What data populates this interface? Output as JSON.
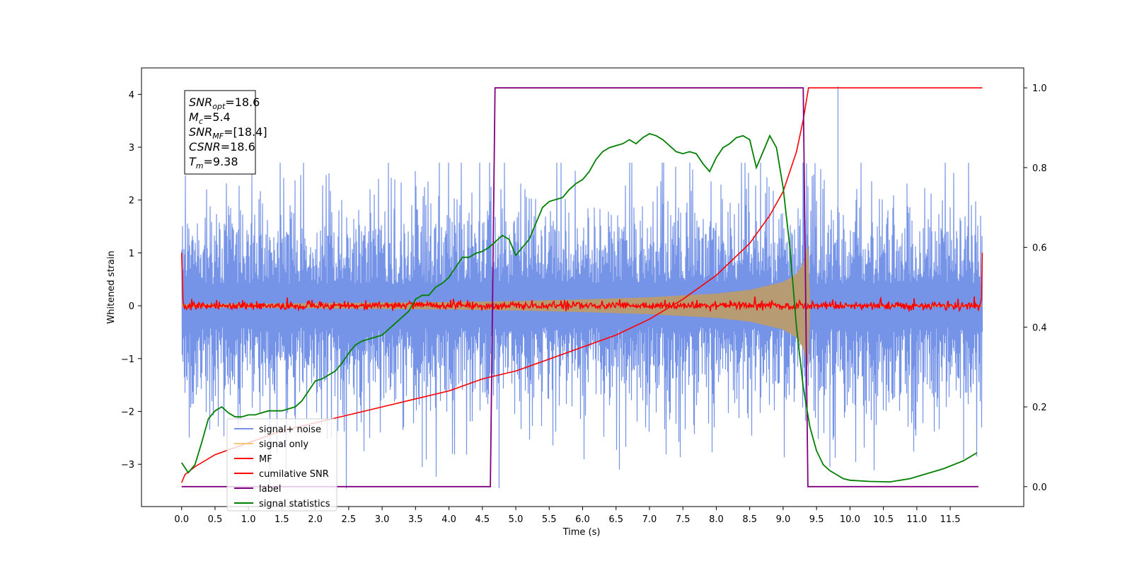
{
  "chart_data": {
    "type": "line",
    "xlabel": "Time (s)",
    "ylabel": "Whitened strain",
    "xlim": [
      -0.6,
      12.6
    ],
    "ylim": [
      -3.8,
      4.5
    ],
    "y2lim": [
      -0.05,
      1.05
    ],
    "x_ticks": [
      0.0,
      0.5,
      1.0,
      1.5,
      2.0,
      2.5,
      3.0,
      3.5,
      4.0,
      4.5,
      5.0,
      5.5,
      6.0,
      6.5,
      7.0,
      7.5,
      8.0,
      8.5,
      9.0,
      9.5,
      10.0,
      10.5,
      11.0,
      11.5
    ],
    "x_tick_labels": [
      "0.0",
      "0.5",
      "1.0",
      "1.5",
      "2.0",
      "2.5",
      "3.0",
      "3.5",
      "4.0",
      "4.5",
      "5.0",
      "5.5",
      "6.0",
      "6.5",
      "7.0",
      "7.5",
      "8.0",
      "8.5",
      "9.0",
      "9.5",
      "10.0",
      "10.5",
      "11.0",
      "11.5"
    ],
    "y_ticks": [
      -3,
      -2,
      -1,
      0,
      1,
      2,
      3,
      4
    ],
    "y_tick_labels": [
      "−3",
      "−2",
      "−1",
      "0",
      "1",
      "2",
      "3",
      "4"
    ],
    "y2_ticks": [
      0.0,
      0.2,
      0.4,
      0.6,
      0.8,
      1.0
    ],
    "y2_tick_labels": [
      "0.0",
      "0.2",
      "0.4",
      "0.6",
      "0.8",
      "1.0"
    ],
    "grid": false,
    "legend_placement": "lower-left",
    "annotation": {
      "lines": [
        {
          "base": "SNR",
          "sub": "opt",
          "rest": "=18.6"
        },
        {
          "base": "M",
          "sub": "c",
          "rest": "=5.4"
        },
        {
          "base": "SNR",
          "sub": "MF",
          "rest": "=[18.4]"
        },
        {
          "base": "CSNR",
          "sub": "",
          "rest": "=18.6"
        },
        {
          "base": "T",
          "sub": "m",
          "rest": "=9.38"
        }
      ]
    },
    "series": [
      {
        "name": "signal+ noise",
        "axis": "left",
        "color": "#7593e7",
        "kind": "noise",
        "t_start": 0.0,
        "t_end": 11.98,
        "band_sigma": 1.0,
        "peak_max": 4.2,
        "peak_min": -3.45
      },
      {
        "name": "signal only",
        "axis": "left",
        "color": "#f5c97a",
        "fill": "#bb9b6d",
        "kind": "chirp",
        "t_start": 0.0,
        "t_end": 11.98,
        "merger_time": 9.38,
        "envelope": {
          "t": [
            0.0,
            2.0,
            4.0,
            5.0,
            6.0,
            7.0,
            8.0,
            8.5,
            9.0,
            9.2,
            9.3,
            9.38,
            9.39,
            11.98
          ],
          "amp": [
            0.03,
            0.05,
            0.07,
            0.09,
            0.12,
            0.16,
            0.23,
            0.3,
            0.45,
            0.6,
            0.8,
            1.2,
            0.02,
            0.02
          ]
        }
      },
      {
        "name": "MF",
        "axis": "left",
        "color": "#ff0000",
        "kind": "mf",
        "t_start": 0.0,
        "t_end": 11.98,
        "amplitude": 0.06,
        "edge_value": 1.0
      },
      {
        "name": "cumilative SNR",
        "axis": "right",
        "color": "#ff0000",
        "x": [
          0.0,
          0.05,
          0.2,
          0.5,
          1.0,
          1.5,
          2.0,
          2.5,
          3.0,
          3.5,
          4.0,
          4.5,
          5.0,
          5.5,
          6.0,
          6.5,
          7.0,
          7.5,
          8.0,
          8.5,
          8.8,
          9.0,
          9.2,
          9.3,
          9.38,
          11.98
        ],
        "y": [
          0.01,
          0.03,
          0.05,
          0.08,
          0.11,
          0.14,
          0.16,
          0.18,
          0.2,
          0.22,
          0.24,
          0.27,
          0.29,
          0.32,
          0.35,
          0.38,
          0.42,
          0.47,
          0.53,
          0.61,
          0.68,
          0.74,
          0.84,
          0.92,
          1.0,
          1.0
        ]
      },
      {
        "name": "label",
        "axis": "right",
        "color": "#800080",
        "x": [
          0.0,
          4.62,
          4.69,
          9.3,
          9.37,
          11.92
        ],
        "y": [
          0.0,
          0.0,
          1.0,
          1.0,
          0.0,
          0.0
        ]
      },
      {
        "name": "signal statistics",
        "axis": "right",
        "color": "#008000",
        "x": [
          0.0,
          0.1,
          0.2,
          0.3,
          0.4,
          0.5,
          0.6,
          0.7,
          0.8,
          0.9,
          1.0,
          1.1,
          1.2,
          1.3,
          1.4,
          1.5,
          1.6,
          1.7,
          1.8,
          1.9,
          2.0,
          2.1,
          2.2,
          2.3,
          2.4,
          2.5,
          2.6,
          2.7,
          2.8,
          2.9,
          3.0,
          3.1,
          3.2,
          3.3,
          3.4,
          3.5,
          3.6,
          3.7,
          3.8,
          3.9,
          4.0,
          4.1,
          4.2,
          4.3,
          4.4,
          4.5,
          4.6,
          4.7,
          4.8,
          4.9,
          5.0,
          5.1,
          5.2,
          5.3,
          5.4,
          5.5,
          5.6,
          5.7,
          5.8,
          5.9,
          6.0,
          6.1,
          6.2,
          6.3,
          6.4,
          6.5,
          6.6,
          6.7,
          6.8,
          6.9,
          7.0,
          7.1,
          7.2,
          7.3,
          7.4,
          7.5,
          7.6,
          7.7,
          7.8,
          7.9,
          8.0,
          8.1,
          8.2,
          8.3,
          8.4,
          8.5,
          8.6,
          8.7,
          8.8,
          8.9,
          9.0,
          9.1,
          9.2,
          9.3,
          9.4,
          9.5,
          9.6,
          9.7,
          9.8,
          9.9,
          10.0,
          10.3,
          10.6,
          10.9,
          11.1,
          11.4,
          11.7,
          11.9
        ],
        "y": [
          0.06,
          0.035,
          0.055,
          0.11,
          0.17,
          0.19,
          0.2,
          0.185,
          0.175,
          0.175,
          0.18,
          0.18,
          0.185,
          0.19,
          0.19,
          0.19,
          0.195,
          0.2,
          0.215,
          0.24,
          0.265,
          0.27,
          0.28,
          0.29,
          0.31,
          0.335,
          0.355,
          0.365,
          0.37,
          0.375,
          0.38,
          0.395,
          0.41,
          0.425,
          0.44,
          0.47,
          0.48,
          0.48,
          0.5,
          0.51,
          0.525,
          0.55,
          0.575,
          0.575,
          0.585,
          0.59,
          0.6,
          0.615,
          0.63,
          0.62,
          0.58,
          0.6,
          0.62,
          0.66,
          0.7,
          0.715,
          0.72,
          0.725,
          0.745,
          0.76,
          0.77,
          0.79,
          0.82,
          0.84,
          0.85,
          0.855,
          0.86,
          0.87,
          0.86,
          0.875,
          0.885,
          0.88,
          0.87,
          0.855,
          0.84,
          0.835,
          0.84,
          0.835,
          0.81,
          0.79,
          0.825,
          0.85,
          0.86,
          0.875,
          0.88,
          0.87,
          0.8,
          0.84,
          0.88,
          0.85,
          0.75,
          0.6,
          0.4,
          0.25,
          0.15,
          0.09,
          0.055,
          0.04,
          0.03,
          0.02,
          0.016,
          0.013,
          0.012,
          0.02,
          0.03,
          0.045,
          0.065,
          0.085
        ]
      }
    ]
  }
}
